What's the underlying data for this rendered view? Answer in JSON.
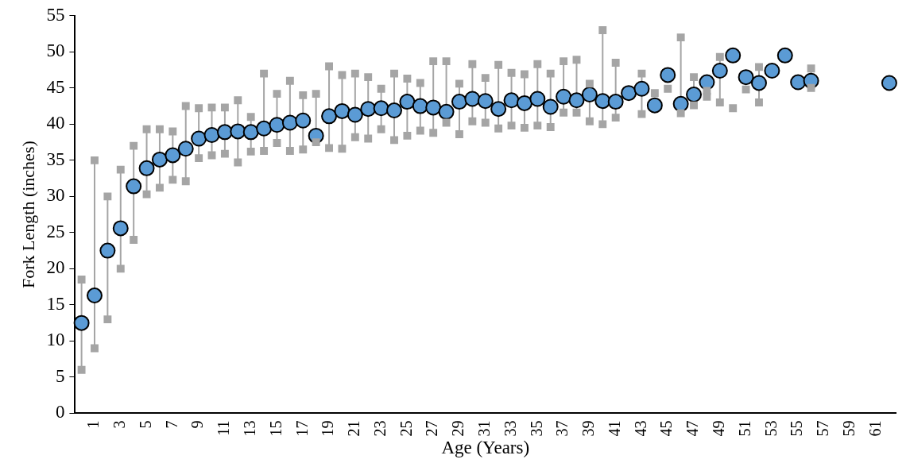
{
  "chart_data": {
    "type": "scatter",
    "xlabel": "Age (Years)",
    "ylabel": "Fork Length (inches)",
    "categories": [
      null,
      "1",
      null,
      "3",
      null,
      "5",
      null,
      "7",
      null,
      "9",
      null,
      "11",
      null,
      "13",
      null,
      "15",
      null,
      "17",
      null,
      "19",
      null,
      "21",
      null,
      "23",
      null,
      "25",
      null,
      "27",
      null,
      "29",
      null,
      "31",
      null,
      "33",
      null,
      "35",
      null,
      "37",
      null,
      "39",
      null,
      "41",
      null,
      "43",
      null,
      "45",
      null,
      "47",
      null,
      "49",
      null,
      "51",
      null,
      "53",
      null,
      "55",
      null,
      "57",
      null,
      "59",
      null,
      "61",
      null
    ],
    "series": [
      {
        "color": "#a5a5a5",
        "marker": "square",
        "values": [
          18.5,
          35,
          30,
          33.7,
          37,
          39.3,
          39.3,
          39,
          42.5,
          42.2,
          42.3,
          42.3,
          43.3,
          41,
          47,
          44.2,
          46,
          44,
          44.2,
          48,
          46.8,
          47,
          46.5,
          44.9,
          47,
          46.3,
          45.7,
          48.7,
          48.7,
          45.6,
          48.3,
          46.4,
          48.2,
          47.1,
          46.9,
          48.3,
          47,
          48.7,
          48.9,
          45.6,
          53,
          48.5,
          null,
          47,
          44.3,
          44.9,
          52,
          46.5,
          44.6,
          49.3,
          null,
          44.8,
          47.9,
          null,
          null,
          null,
          47.7,
          null,
          null,
          null,
          null,
          null,
          null
        ]
      },
      {
        "color": "#a5a5a5",
        "marker": "square",
        "values": [
          6,
          9,
          13,
          20,
          24,
          30.3,
          31.2,
          32.3,
          32.1,
          35.3,
          35.7,
          35.9,
          34.7,
          36.2,
          36.3,
          37.4,
          36.3,
          36.5,
          37.5,
          36.7,
          36.6,
          38.2,
          38,
          39.3,
          37.8,
          38.4,
          39.1,
          38.8,
          40.2,
          38.6,
          40.4,
          40.2,
          39.4,
          39.8,
          39.5,
          39.8,
          39.6,
          41.6,
          41.6,
          40.4,
          40,
          40.9,
          null,
          41.4,
          null,
          null,
          41.5,
          42.6,
          43.8,
          43,
          42.2,
          null,
          43,
          null,
          null,
          null,
          45,
          null,
          null,
          null,
          null,
          null,
          null
        ]
      },
      {
        "color": "#5b9bd5",
        "marker": "circle",
        "values": [
          12.5,
          16.3,
          22.5,
          25.6,
          31.4,
          33.9,
          35.1,
          35.7,
          36.6,
          38,
          38.5,
          38.9,
          39,
          38.9,
          39.4,
          39.9,
          40.2,
          40.5,
          38.4,
          41.1,
          41.8,
          41.3,
          42.1,
          42.2,
          41.9,
          43.1,
          42.5,
          42.3,
          41.7,
          43.1,
          43.5,
          43.2,
          42.1,
          43.3,
          42.9,
          43.5,
          42.4,
          43.8,
          43.3,
          44.1,
          43.2,
          43.1,
          44.3,
          44.9,
          42.6,
          46.8,
          42.8,
          44.1,
          45.8,
          47.4,
          49.5,
          46.5,
          45.7,
          47.4,
          49.5,
          45.8,
          46,
          null,
          null,
          null,
          null,
          null,
          45.7
        ]
      }
    ],
    "ylim": [
      0,
      55
    ],
    "yticks": [
      0,
      5,
      10,
      15,
      20,
      25,
      30,
      35,
      40,
      45,
      50,
      55
    ],
    "grid": false,
    "legend": false
  }
}
